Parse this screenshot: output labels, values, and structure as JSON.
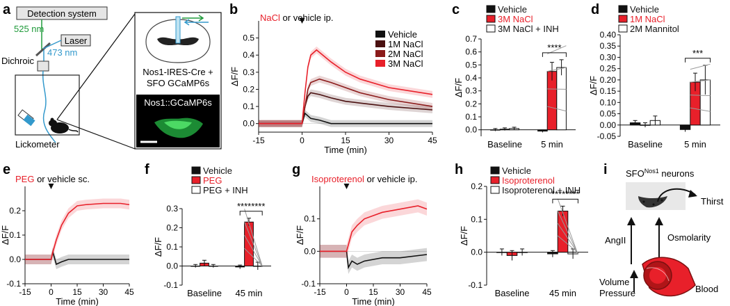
{
  "colors": {
    "vehicle": "#111111",
    "red": "#e8202a",
    "dark1": "#4a1010",
    "dark2": "#8b1a1a",
    "blue": "#3399cc",
    "green": "#1f9a3a"
  },
  "panel_a": {
    "label": "a",
    "detection": "Detection system",
    "wl_525": "525 nm",
    "laser": "Laser",
    "wl_473": "473 nm",
    "dichroic": "Dichroic",
    "lickometer": "Lickometer",
    "mouse_line_1": "Nos1-IRES-Cre +",
    "mouse_line_2": "SFO GCaMP6s",
    "histology": "Nos1::GCaMP6s"
  },
  "panel_b": {
    "label": "b",
    "title_red": "NaCl",
    "title_rest": " or vehicle ip.",
    "ylabel": "ΔF/F",
    "xlabel": "Time (min)",
    "legend": [
      "Vehicle",
      "1M NaCl",
      "2M NaCl",
      "3M NaCl"
    ]
  },
  "panel_c": {
    "label": "c",
    "ylabel": "ΔF/F",
    "sig": "****",
    "legend": [
      "Vehicle",
      "3M NaCl",
      "3M NaCl + INH"
    ]
  },
  "panel_d": {
    "label": "d",
    "ylabel": "ΔF/F",
    "sig": "***",
    "legend": [
      "Vehicle",
      "1M NaCl",
      "2M Mannitol"
    ]
  },
  "panel_e": {
    "label": "e",
    "title_red": "PEG",
    "title_rest": " or vehicle sc.",
    "ylabel": "ΔF/F",
    "xlabel": "Time (min)"
  },
  "panel_f": {
    "label": "f",
    "ylabel": "ΔF/F",
    "sig": "********",
    "legend": [
      "Vehicle",
      "PEG",
      "PEG + INH"
    ]
  },
  "panel_g": {
    "label": "g",
    "title_red": "Isoproterenol",
    "title_rest": " or vehicle ip.",
    "ylabel": "ΔF/F",
    "xlabel": "Time (min)"
  },
  "panel_h": {
    "label": "h",
    "ylabel": "ΔF/F",
    "sig": "********",
    "legend": [
      "Vehicle",
      "Isoproterenol",
      "Isoproterenol + INH"
    ]
  },
  "panel_i": {
    "label": "i",
    "title_main": "SFO",
    "title_sup": "Nos1",
    "title_rest": " neurons",
    "thirst": "Thirst",
    "angii": "AngII",
    "osmolarity": "Osmolarity",
    "volume": "Volume",
    "pressure": "Pressure",
    "blood": "Blood"
  },
  "chart_data": [
    {
      "id": "b",
      "type": "line",
      "title": "NaCl or vehicle ip.",
      "xlabel": "Time (min)",
      "ylabel": "ΔF/F",
      "xlim": [
        -15,
        45
      ],
      "ylim": [
        -0.05,
        0.6
      ],
      "xticks": [
        "-15",
        "0",
        "15",
        "30",
        "45"
      ],
      "xtick_values": [
        -15,
        0,
        15,
        30,
        45
      ],
      "yticks": [
        "0.0",
        "0.1",
        "0.2",
        "0.3",
        "0.4",
        "0.5"
      ],
      "ytick_values": [
        0,
        0.1,
        0.2,
        0.3,
        0.4,
        0.5
      ],
      "series": [
        {
          "name": "Vehicle",
          "color": "#111111",
          "x": [
            -15,
            0,
            1,
            3,
            6,
            10,
            20,
            30,
            45
          ],
          "values": [
            0.0,
            0.0,
            0.06,
            0.03,
            0.02,
            0.0,
            0.0,
            0.0,
            0.0
          ]
        },
        {
          "name": "1M NaCl",
          "color": "#4a1010",
          "x": [
            -15,
            0,
            1,
            2,
            3,
            6,
            10,
            15,
            20,
            30,
            45
          ],
          "values": [
            0.0,
            0.0,
            0.1,
            0.16,
            0.18,
            0.17,
            0.15,
            0.13,
            0.12,
            0.1,
            0.08
          ]
        },
        {
          "name": "2M NaCl",
          "color": "#8b1a1a",
          "x": [
            -15,
            0,
            1,
            2,
            3,
            6,
            10,
            15,
            20,
            30,
            45
          ],
          "values": [
            0.0,
            0.0,
            0.1,
            0.2,
            0.24,
            0.26,
            0.24,
            0.21,
            0.18,
            0.14,
            0.1
          ]
        },
        {
          "name": "3M NaCl",
          "color": "#e8202a",
          "x": [
            -15,
            0,
            1,
            2,
            3,
            5,
            10,
            15,
            20,
            30,
            45
          ],
          "values": [
            0.0,
            0.0,
            0.18,
            0.33,
            0.4,
            0.43,
            0.36,
            0.3,
            0.26,
            0.21,
            0.17
          ]
        }
      ],
      "annotation": "injection at t=0"
    },
    {
      "id": "c",
      "type": "bar",
      "ylabel": "ΔF/F",
      "ylim": [
        -0.05,
        0.7
      ],
      "categories": [
        "Baseline",
        "5 min"
      ],
      "yticks": [
        "0.0",
        "0.1",
        "0.2",
        "0.3",
        "0.4",
        "0.5",
        "0.6",
        "0.7"
      ],
      "ytick_values": [
        0,
        0.1,
        0.2,
        0.3,
        0.4,
        0.5,
        0.6,
        0.7
      ],
      "series": [
        {
          "name": "Vehicle",
          "values": [
            0.0,
            -0.01
          ],
          "errors": [
            0.01,
            0.01
          ]
        },
        {
          "name": "3M NaCl",
          "values": [
            0.005,
            0.45
          ],
          "errors": [
            0.01,
            0.07
          ]
        },
        {
          "name": "3M NaCl + INH",
          "values": [
            0.01,
            0.48
          ],
          "errors": [
            0.01,
            0.06
          ]
        }
      ],
      "significance": "****"
    },
    {
      "id": "d",
      "type": "bar",
      "ylabel": "ΔF/F",
      "ylim": [
        -0.05,
        0.4
      ],
      "categories": [
        "Baseline",
        "5 min"
      ],
      "yticks": [
        "-0.05",
        "0.00",
        "0.05",
        "0.10",
        "0.15",
        "0.20",
        "0.25",
        "0.30",
        "0.35",
        "0.40"
      ],
      "ytick_values": [
        -0.05,
        0,
        0.05,
        0.1,
        0.15,
        0.2,
        0.25,
        0.3,
        0.35,
        0.4
      ],
      "series": [
        {
          "name": "Vehicle",
          "values": [
            0.01,
            -0.02
          ],
          "errors": [
            0.01,
            0.01
          ]
        },
        {
          "name": "1M NaCl",
          "values": [
            0.0,
            0.19
          ],
          "errors": [
            0.01,
            0.04
          ]
        },
        {
          "name": "2M Mannitol",
          "values": [
            0.02,
            0.2
          ],
          "errors": [
            0.02,
            0.065
          ]
        }
      ],
      "significance": "***"
    },
    {
      "id": "e",
      "type": "line",
      "title": "PEG or vehicle sc.",
      "xlabel": "Time (min)",
      "ylabel": "ΔF/F",
      "xlim": [
        -15,
        45
      ],
      "ylim": [
        -0.1,
        0.3
      ],
      "xticks": [
        "-15",
        "0",
        "15",
        "30",
        "45"
      ],
      "xtick_values": [
        -15,
        0,
        15,
        30,
        45
      ],
      "yticks": [
        "-0.1",
        "0.0",
        "0.1",
        "0.2"
      ],
      "ytick_values": [
        -0.1,
        0,
        0.1,
        0.2
      ],
      "series": [
        {
          "name": "Vehicle",
          "color": "#111111",
          "x": [
            -15,
            0,
            1,
            3,
            6,
            10,
            20,
            30,
            45
          ],
          "values": [
            0.0,
            0.0,
            0.03,
            -0.02,
            -0.01,
            0.0,
            0.0,
            0.0,
            0.0
          ]
        },
        {
          "name": "PEG",
          "color": "#e8202a",
          "x": [
            -15,
            0,
            1,
            3,
            6,
            10,
            15,
            20,
            30,
            40,
            45
          ],
          "values": [
            0.0,
            0.0,
            0.03,
            0.08,
            0.14,
            0.19,
            0.22,
            0.225,
            0.23,
            0.23,
            0.225
          ]
        }
      ],
      "annotation": "injection at t=0"
    },
    {
      "id": "f",
      "type": "bar",
      "ylabel": "ΔF/F",
      "ylim": [
        -0.1,
        0.3
      ],
      "categories": [
        "Baseline",
        "45 min"
      ],
      "yticks": [
        "-0.1",
        "0.0",
        "0.1",
        "0.2",
        "0.3"
      ],
      "ytick_values": [
        -0.1,
        0,
        0.1,
        0.2,
        0.3
      ],
      "series": [
        {
          "name": "Vehicle",
          "values": [
            0.0,
            -0.005
          ],
          "errors": [
            0.008,
            0.01
          ]
        },
        {
          "name": "PEG",
          "values": [
            0.015,
            0.23
          ],
          "errors": [
            0.015,
            0.02
          ]
        },
        {
          "name": "PEG + INH",
          "values": [
            0.0,
            0.0
          ],
          "errors": [
            0.008,
            0.02
          ]
        }
      ],
      "significance": "********"
    },
    {
      "id": "g",
      "type": "line",
      "title": "Isoproterenol or vehicle ip.",
      "xlabel": "Time (min)",
      "ylabel": "ΔF/F",
      "xlim": [
        -15,
        45
      ],
      "ylim": [
        -0.1,
        0.2
      ],
      "xticks": [
        "-15",
        "0",
        "15",
        "30",
        "45"
      ],
      "xtick_values": [
        -15,
        0,
        15,
        30,
        45
      ],
      "yticks": [
        "-0.1",
        "0.0",
        "0.1"
      ],
      "ytick_values": [
        -0.1,
        0,
        0.1
      ],
      "series": [
        {
          "name": "Vehicle",
          "color": "#111111",
          "x": [
            -15,
            0,
            1,
            3,
            6,
            10,
            20,
            30,
            45
          ],
          "values": [
            0.0,
            0.0,
            -0.05,
            -0.03,
            -0.04,
            -0.03,
            -0.02,
            -0.02,
            -0.01
          ]
        },
        {
          "name": "Isoproterenol",
          "color": "#e8202a",
          "x": [
            -15,
            0,
            1,
            3,
            6,
            10,
            15,
            20,
            30,
            40,
            45
          ],
          "values": [
            0.0,
            0.0,
            0.02,
            0.06,
            0.08,
            0.1,
            0.11,
            0.12,
            0.13,
            0.14,
            0.13
          ]
        }
      ],
      "annotation": "injection at t=0"
    },
    {
      "id": "h",
      "type": "bar",
      "ylabel": "ΔF/F",
      "ylim": [
        -0.1,
        0.2
      ],
      "categories": [
        "Baseline",
        "45 min"
      ],
      "yticks": [
        "-0.1",
        "0.0",
        "0.1",
        "0.2"
      ],
      "ytick_values": [
        -0.1,
        0,
        0.1,
        0.2
      ],
      "series": [
        {
          "name": "Vehicle",
          "values": [
            0.0,
            -0.005
          ],
          "errors": [
            0.01,
            0.01
          ]
        },
        {
          "name": "Isoproterenol",
          "values": [
            -0.01,
            0.125
          ],
          "errors": [
            0.015,
            0.015
          ]
        },
        {
          "name": "Isoproterenol + INH",
          "values": [
            0.0,
            -0.005
          ],
          "errors": [
            0.01,
            0.015
          ]
        }
      ],
      "significance": "********"
    }
  ]
}
